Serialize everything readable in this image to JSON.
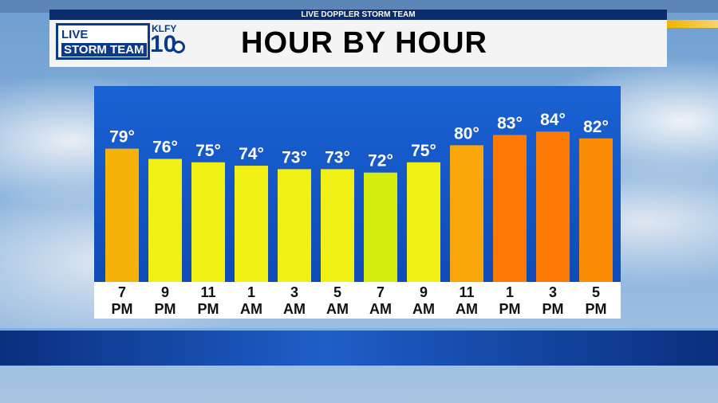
{
  "header": {
    "banner_label": "LIVE DOPPLER STORM TEAM",
    "logo_line1": "LIVE DOPPLER",
    "logo_line2": "STORM TEAM",
    "logo_callsign": "KLFY",
    "logo_channel": "10",
    "title": "HOUR BY HOUR"
  },
  "colors": {
    "hot": "#fb7a04",
    "warm": "#f6a808",
    "mild": "#f3f011",
    "cool": "#d6ed10"
  },
  "chart_data": {
    "type": "bar",
    "categories": [
      "7 PM",
      "9 PM",
      "11 PM",
      "1 AM",
      "3 AM",
      "5 AM",
      "7 AM",
      "9 AM",
      "11 AM",
      "1 PM",
      "3 PM",
      "5 PM"
    ],
    "category_lines": [
      [
        "7",
        "PM"
      ],
      [
        "9",
        "PM"
      ],
      [
        "11",
        "PM"
      ],
      [
        "1",
        "AM"
      ],
      [
        "3",
        "AM"
      ],
      [
        "5",
        "AM"
      ],
      [
        "7",
        "AM"
      ],
      [
        "9",
        "AM"
      ],
      [
        "11",
        "AM"
      ],
      [
        "1",
        "PM"
      ],
      [
        "3",
        "PM"
      ],
      [
        "5",
        "PM"
      ]
    ],
    "values": [
      79,
      76,
      75,
      74,
      73,
      73,
      72,
      75,
      80,
      83,
      84,
      82
    ],
    "labels": [
      "79°",
      "76°",
      "75°",
      "74°",
      "73°",
      "73°",
      "72°",
      "75°",
      "80°",
      "83°",
      "84°",
      "82°"
    ],
    "bar_colors": [
      "#f6b208",
      "#f1f014",
      "#f1f014",
      "#f1f014",
      "#f1f014",
      "#f1f014",
      "#d5ee0f",
      "#f1f014",
      "#f8a60a",
      "#fb7904",
      "#fb7904",
      "#fa8c06"
    ],
    "ylim": [
      40,
      88
    ],
    "unit": "°F"
  }
}
